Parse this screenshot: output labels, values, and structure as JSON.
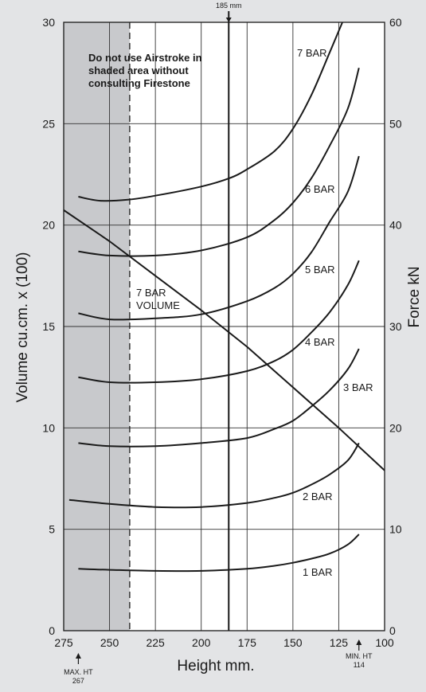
{
  "chart_data": {
    "type": "line",
    "xlabel": "Height mm.",
    "ylabel": "Volume cu.cm. x (100)",
    "y2label": "Force kN",
    "xlim": [
      275,
      100
    ],
    "ylim": [
      0,
      30
    ],
    "y2lim": [
      0,
      60
    ],
    "x_ticks": [
      275,
      250,
      225,
      200,
      175,
      150,
      125,
      100
    ],
    "y_ticks": [
      0,
      5,
      10,
      15,
      20,
      25,
      30
    ],
    "y2_ticks": [
      0,
      10,
      20,
      30,
      40,
      50,
      60
    ],
    "grid": true,
    "shaded_region": {
      "x_from": 275,
      "x_to": 239
    },
    "note_lines": [
      "Do not use Airstroke in",
      "shaded area without",
      "consulting Firestone"
    ],
    "marker_185": {
      "x": 185,
      "label": "185 mm"
    },
    "max_height": {
      "x": 267,
      "label_lines": [
        "MAX. HT",
        "267"
      ]
    },
    "min_height": {
      "x": 114,
      "label_lines": [
        "MIN. HT",
        "114"
      ]
    },
    "series": [
      {
        "name": "7 BAR VOLUME",
        "label_lines": [
          "7 BAR",
          "VOLUME"
        ],
        "axis": "left",
        "points": [
          [
            276,
            20.8
          ],
          [
            250,
            19.2
          ],
          [
            225,
            17.5
          ],
          [
            200,
            15.8
          ],
          [
            175,
            14.0
          ],
          [
            150,
            12.0
          ],
          [
            125,
            10.0
          ],
          [
            100,
            7.9
          ]
        ]
      },
      {
        "name": "7 BAR",
        "label_lines": [
          "7 BAR"
        ],
        "axis": "right",
        "points": [
          [
            267,
            42.8
          ],
          [
            255,
            42.4
          ],
          [
            240,
            42.5
          ],
          [
            225,
            42.9
          ],
          [
            200,
            43.8
          ],
          [
            185,
            44.6
          ],
          [
            175,
            45.5
          ],
          [
            160,
            47.3
          ],
          [
            150,
            49.5
          ],
          [
            140,
            52.8
          ],
          [
            130,
            57.0
          ],
          [
            123,
            60.0
          ]
        ]
      },
      {
        "name": "6 BAR",
        "label_lines": [
          "6 BAR"
        ],
        "axis": "right",
        "points": [
          [
            267,
            37.4
          ],
          [
            250,
            37.0
          ],
          [
            225,
            37.0
          ],
          [
            200,
            37.5
          ],
          [
            175,
            38.8
          ],
          [
            160,
            40.5
          ],
          [
            150,
            42.2
          ],
          [
            140,
            44.6
          ],
          [
            130,
            47.8
          ],
          [
            120,
            51.5
          ],
          [
            114,
            55.5
          ]
        ]
      },
      {
        "name": "5 BAR",
        "label_lines": [
          "5 BAR"
        ],
        "axis": "right",
        "points": [
          [
            267,
            31.3
          ],
          [
            250,
            30.7
          ],
          [
            225,
            30.8
          ],
          [
            200,
            31.2
          ],
          [
            175,
            32.5
          ],
          [
            160,
            33.8
          ],
          [
            150,
            35.2
          ],
          [
            140,
            37.3
          ],
          [
            130,
            40.3
          ],
          [
            120,
            43.3
          ],
          [
            114,
            46.8
          ]
        ]
      },
      {
        "name": "4 BAR",
        "label_lines": [
          "4 BAR"
        ],
        "axis": "right",
        "points": [
          [
            267,
            25.0
          ],
          [
            250,
            24.5
          ],
          [
            225,
            24.5
          ],
          [
            200,
            24.8
          ],
          [
            175,
            25.6
          ],
          [
            160,
            26.6
          ],
          [
            150,
            27.7
          ],
          [
            140,
            29.4
          ],
          [
            130,
            31.4
          ],
          [
            120,
            34.1
          ],
          [
            114,
            36.5
          ]
        ]
      },
      {
        "name": "3 BAR",
        "label_lines": [
          "3 BAR"
        ],
        "axis": "right",
        "points": [
          [
            267,
            18.5
          ],
          [
            250,
            18.2
          ],
          [
            225,
            18.2
          ],
          [
            200,
            18.5
          ],
          [
            175,
            19.0
          ],
          [
            160,
            19.9
          ],
          [
            150,
            20.7
          ],
          [
            140,
            22.1
          ],
          [
            130,
            23.7
          ],
          [
            120,
            25.8
          ],
          [
            114,
            27.8
          ]
        ]
      },
      {
        "name": "2 BAR",
        "label_lines": [
          "2 BAR"
        ],
        "axis": "right",
        "points": [
          [
            272,
            12.9
          ],
          [
            250,
            12.5
          ],
          [
            225,
            12.2
          ],
          [
            200,
            12.2
          ],
          [
            175,
            12.6
          ],
          [
            160,
            13.1
          ],
          [
            150,
            13.6
          ],
          [
            140,
            14.4
          ],
          [
            130,
            15.4
          ],
          [
            120,
            16.8
          ],
          [
            114,
            18.5
          ]
        ]
      },
      {
        "name": "1 BAR",
        "label_lines": [
          "1 BAR"
        ],
        "axis": "right",
        "points": [
          [
            267,
            6.1
          ],
          [
            250,
            6.0
          ],
          [
            225,
            5.9
          ],
          [
            200,
            5.9
          ],
          [
            175,
            6.1
          ],
          [
            160,
            6.4
          ],
          [
            150,
            6.7
          ],
          [
            140,
            7.1
          ],
          [
            130,
            7.6
          ],
          [
            120,
            8.5
          ],
          [
            114,
            9.5
          ]
        ]
      }
    ]
  }
}
